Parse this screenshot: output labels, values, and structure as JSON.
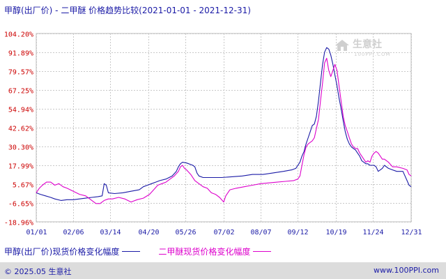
{
  "title": "甲醇(出厂价) - 二甲醚 价格趋势比较(2021-01-01 - 2021-12-31)",
  "footer": {
    "left": "© 2025.05 生意社",
    "right": "www.100PPI.com"
  },
  "watermark": {
    "text": "生意社",
    "sub": "100PPI.COM"
  },
  "colors": {
    "series_1": "#1a1aa6",
    "series_2": "#dd00cc",
    "grid": "#c8c8c8",
    "ytick": "#cc0000",
    "xtick": "#1a1aa6"
  },
  "chart_data": {
    "type": "line",
    "title": "甲醇(出厂价) - 二甲醚 价格趋势比较(2021-01-01 - 2021-12-31)",
    "yunit": "%",
    "ylim": [
      -18.96,
      104.2
    ],
    "yticks": [
      "104.20%",
      "91.89%",
      "79.57%",
      "67.25%",
      "54.94%",
      "42.62%",
      "30.30%",
      "17.99%",
      "5.67%",
      "-6.65%",
      "-18.96%"
    ],
    "ytick_values": [
      104.2,
      91.89,
      79.57,
      67.25,
      54.94,
      42.62,
      30.3,
      17.99,
      5.67,
      -6.65,
      -18.96
    ],
    "xticks": [
      "01/01",
      "02/06",
      "03/14",
      "04/20",
      "05/26",
      "07/02",
      "08/07",
      "09/12",
      "10/19",
      "11/24",
      "12/31"
    ],
    "xtick_days": [
      0,
      36,
      72,
      109,
      145,
      182,
      218,
      254,
      291,
      327,
      364
    ],
    "grid": true,
    "legend_position": "bottom",
    "series": [
      {
        "name": "甲醇(出厂价)现货价格变化幅度",
        "color": "#1a1aa6",
        "points": [
          [
            0,
            0
          ],
          [
            4,
            -1
          ],
          [
            9,
            -2
          ],
          [
            14,
            -3
          ],
          [
            18,
            -4
          ],
          [
            24,
            -5
          ],
          [
            30,
            -4.5
          ],
          [
            36,
            -4.5
          ],
          [
            42,
            -4
          ],
          [
            48,
            -3.5
          ],
          [
            54,
            -3
          ],
          [
            60,
            -2.5
          ],
          [
            64,
            -2
          ],
          [
            66,
            6
          ],
          [
            68,
            5
          ],
          [
            70,
            0
          ],
          [
            76,
            -0.5
          ],
          [
            84,
            0
          ],
          [
            92,
            1
          ],
          [
            100,
            2
          ],
          [
            104,
            4
          ],
          [
            108,
            5
          ],
          [
            112,
            6
          ],
          [
            116,
            7
          ],
          [
            120,
            8
          ],
          [
            126,
            9
          ],
          [
            132,
            11
          ],
          [
            136,
            14
          ],
          [
            138,
            17
          ],
          [
            140,
            19
          ],
          [
            142,
            20
          ],
          [
            146,
            19.5
          ],
          [
            152,
            18
          ],
          [
            154,
            17
          ],
          [
            156,
            13
          ],
          [
            158,
            11
          ],
          [
            162,
            10
          ],
          [
            170,
            10
          ],
          [
            180,
            10
          ],
          [
            190,
            10.5
          ],
          [
            200,
            11
          ],
          [
            210,
            12
          ],
          [
            220,
            12
          ],
          [
            230,
            13
          ],
          [
            240,
            14
          ],
          [
            248,
            15
          ],
          [
            252,
            16
          ],
          [
            256,
            20
          ],
          [
            258,
            24
          ],
          [
            260,
            27
          ],
          [
            262,
            32
          ],
          [
            264,
            36
          ],
          [
            266,
            40
          ],
          [
            268,
            44
          ],
          [
            270,
            45
          ],
          [
            272,
            50
          ],
          [
            274,
            60
          ],
          [
            276,
            72
          ],
          [
            278,
            84
          ],
          [
            280,
            92
          ],
          [
            282,
            95
          ],
          [
            284,
            94
          ],
          [
            286,
            90
          ],
          [
            288,
            84
          ],
          [
            290,
            77
          ],
          [
            292,
            70
          ],
          [
            294,
            62
          ],
          [
            296,
            55
          ],
          [
            298,
            47
          ],
          [
            300,
            40
          ],
          [
            302,
            35
          ],
          [
            304,
            32
          ],
          [
            306,
            30
          ],
          [
            308,
            29
          ],
          [
            310,
            28
          ],
          [
            312,
            26
          ],
          [
            314,
            24
          ],
          [
            316,
            21
          ],
          [
            318,
            20
          ],
          [
            320,
            19
          ],
          [
            322,
            19
          ],
          [
            324,
            18
          ],
          [
            326,
            18
          ],
          [
            328,
            18
          ],
          [
            330,
            17
          ],
          [
            332,
            14
          ],
          [
            334,
            15
          ],
          [
            336,
            16
          ],
          [
            338,
            18
          ],
          [
            342,
            16
          ],
          [
            346,
            15
          ],
          [
            350,
            14
          ],
          [
            356,
            14
          ],
          [
            360,
            8
          ],
          [
            362,
            5
          ],
          [
            364,
            4
          ]
        ]
      },
      {
        "name": "二甲醚现货价格变化幅度",
        "color": "#dd00cc",
        "points": [
          [
            0,
            0
          ],
          [
            3,
            3
          ],
          [
            6,
            5
          ],
          [
            10,
            7
          ],
          [
            14,
            7
          ],
          [
            18,
            5
          ],
          [
            22,
            6
          ],
          [
            26,
            4
          ],
          [
            30,
            3
          ],
          [
            36,
            1
          ],
          [
            42,
            -1
          ],
          [
            48,
            -2
          ],
          [
            54,
            -5
          ],
          [
            58,
            -7
          ],
          [
            62,
            -7
          ],
          [
            66,
            -5
          ],
          [
            70,
            -4
          ],
          [
            74,
            -4
          ],
          [
            80,
            -3
          ],
          [
            86,
            -4
          ],
          [
            92,
            -6
          ],
          [
            98,
            -4.5
          ],
          [
            104,
            -3.5
          ],
          [
            110,
            -1
          ],
          [
            114,
            2
          ],
          [
            118,
            5
          ],
          [
            122,
            6
          ],
          [
            126,
            7
          ],
          [
            130,
            9
          ],
          [
            134,
            11
          ],
          [
            138,
            14
          ],
          [
            140,
            17
          ],
          [
            142,
            18
          ],
          [
            144,
            16
          ],
          [
            146,
            15
          ],
          [
            150,
            12
          ],
          [
            154,
            8
          ],
          [
            158,
            6
          ],
          [
            162,
            4
          ],
          [
            166,
            3
          ],
          [
            170,
            0
          ],
          [
            174,
            -1
          ],
          [
            178,
            -3
          ],
          [
            182,
            -6
          ],
          [
            184,
            -2
          ],
          [
            188,
            2
          ],
          [
            194,
            3
          ],
          [
            202,
            4
          ],
          [
            210,
            5
          ],
          [
            218,
            6
          ],
          [
            226,
            6.5
          ],
          [
            234,
            7
          ],
          [
            242,
            7.5
          ],
          [
            250,
            8
          ],
          [
            254,
            9
          ],
          [
            256,
            11
          ],
          [
            258,
            18
          ],
          [
            260,
            25
          ],
          [
            262,
            30
          ],
          [
            264,
            32
          ],
          [
            266,
            33
          ],
          [
            268,
            34
          ],
          [
            270,
            36
          ],
          [
            272,
            42
          ],
          [
            274,
            48
          ],
          [
            276,
            60
          ],
          [
            278,
            72
          ],
          [
            280,
            85
          ],
          [
            282,
            88
          ],
          [
            284,
            80
          ],
          [
            286,
            76
          ],
          [
            288,
            80
          ],
          [
            290,
            84
          ],
          [
            292,
            80
          ],
          [
            294,
            70
          ],
          [
            296,
            60
          ],
          [
            298,
            50
          ],
          [
            300,
            44
          ],
          [
            302,
            40
          ],
          [
            304,
            36
          ],
          [
            306,
            32
          ],
          [
            308,
            30
          ],
          [
            310,
            29
          ],
          [
            312,
            29
          ],
          [
            314,
            26
          ],
          [
            316,
            24
          ],
          [
            318,
            22
          ],
          [
            320,
            20
          ],
          [
            322,
            21
          ],
          [
            324,
            20
          ],
          [
            326,
            24
          ],
          [
            328,
            26
          ],
          [
            330,
            27
          ],
          [
            332,
            26
          ],
          [
            334,
            24
          ],
          [
            336,
            22
          ],
          [
            338,
            22
          ],
          [
            342,
            20
          ],
          [
            346,
            17
          ],
          [
            350,
            17
          ],
          [
            356,
            16
          ],
          [
            360,
            15
          ],
          [
            362,
            12
          ],
          [
            364,
            11
          ]
        ]
      }
    ]
  }
}
